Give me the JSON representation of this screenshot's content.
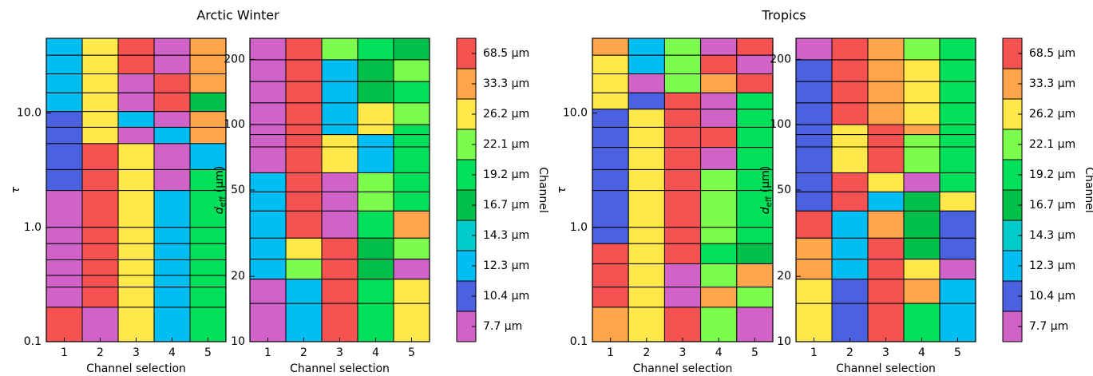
{
  "chart_data": [
    {
      "type": "heatmap",
      "title": "Arctic Winter",
      "xlabel": "Channel selection",
      "ylabel": "τ",
      "xlim": [
        0.5,
        5.5
      ],
      "xticks": [
        1,
        2,
        3,
        4,
        5
      ],
      "log_y": true,
      "ylim": [
        0.1,
        45
      ],
      "yticks": [
        0.1,
        {
          "value": 1,
          "label": "1.0"
        },
        {
          "value": 10,
          "label": "10.0"
        }
      ],
      "row_edges": [
        45,
        32,
        22,
        15,
        10.3,
        7.5,
        5.4,
        3.2,
        2.1,
        1.0,
        0.72,
        0.52,
        0.38,
        0.3,
        0.2,
        0.1
      ],
      "cells": [
        [
          7,
          2,
          0,
          9,
          1
        ],
        [
          7,
          2,
          0,
          9,
          1
        ],
        [
          7,
          2,
          9,
          0,
          1
        ],
        [
          7,
          2,
          9,
          0,
          5
        ],
        [
          8,
          2,
          7,
          9,
          1
        ],
        [
          8,
          2,
          9,
          7,
          1
        ],
        [
          8,
          0,
          2,
          9,
          7
        ],
        [
          8,
          0,
          2,
          9,
          4
        ],
        [
          9,
          0,
          2,
          7,
          4
        ],
        [
          9,
          0,
          2,
          7,
          4
        ],
        [
          9,
          0,
          2,
          7,
          4
        ],
        [
          9,
          0,
          2,
          7,
          4
        ],
        [
          9,
          0,
          2,
          7,
          4
        ],
        [
          9,
          0,
          2,
          7,
          4
        ],
        [
          0,
          9,
          2,
          7,
          4
        ]
      ]
    },
    {
      "type": "heatmap",
      "xlabel": "Channel selection",
      "ylabel": {
        "main": "d",
        "sub": "eff",
        "unit": "(μm)"
      },
      "xlim": [
        0.5,
        5.5
      ],
      "xticks": [
        1,
        2,
        3,
        4,
        5
      ],
      "log_y": true,
      "ylim": [
        10,
        250
      ],
      "yticks": [
        10,
        20,
        50,
        100,
        200
      ],
      "row_edges": [
        250,
        199,
        158,
        126,
        100,
        90,
        79,
        60,
        49,
        40,
        30,
        24,
        19.4,
        15,
        10
      ],
      "cells": [
        [
          9,
          0,
          3,
          4,
          5
        ],
        [
          9,
          0,
          7,
          5,
          3
        ],
        [
          9,
          0,
          7,
          5,
          4
        ],
        [
          9,
          0,
          7,
          2,
          3
        ],
        [
          9,
          0,
          7,
          2,
          4
        ],
        [
          9,
          0,
          2,
          7,
          4
        ],
        [
          9,
          0,
          2,
          7,
          4
        ],
        [
          7,
          0,
          9,
          3,
          4
        ],
        [
          7,
          0,
          9,
          3,
          4
        ],
        [
          7,
          0,
          9,
          4,
          1
        ],
        [
          7,
          2,
          0,
          5,
          3
        ],
        [
          7,
          3,
          0,
          5,
          9
        ],
        [
          9,
          7,
          0,
          4,
          2
        ],
        [
          9,
          7,
          0,
          4,
          2
        ]
      ]
    },
    {
      "type": "colorbar",
      "label": "Channel",
      "categories": [
        "68.5 μm",
        "33.3 μm",
        "26.2 μm",
        "22.1 μm",
        "19.2 μm",
        "16.7 μm",
        "14.3 μm",
        "12.3 μm",
        "10.4 μm",
        "7.7 μm"
      ],
      "colors": [
        "#f75252",
        "#ffa64d",
        "#ffe84a",
        "#7cfc4c",
        "#00e05a",
        "#00c04a",
        "#00cccc",
        "#00bdf2",
        "#4a62e0",
        "#d062c8"
      ]
    },
    {
      "type": "heatmap",
      "title": "Tropics",
      "xlabel": "Channel selection",
      "ylabel": "τ",
      "xlim": [
        0.5,
        5.5
      ],
      "xticks": [
        1,
        2,
        3,
        4,
        5
      ],
      "log_y": true,
      "ylim": [
        0.1,
        45
      ],
      "yticks": [
        0.1,
        {
          "value": 1,
          "label": "1.0"
        },
        {
          "value": 10,
          "label": "10.0"
        }
      ],
      "row_edges": [
        45,
        32,
        22,
        15,
        10.8,
        7.5,
        5.0,
        3.2,
        2.1,
        1.0,
        0.72,
        0.48,
        0.3,
        0.2,
        0.1
      ],
      "cells": [
        [
          1,
          7,
          3,
          9,
          0
        ],
        [
          2,
          7,
          3,
          0,
          9
        ],
        [
          2,
          9,
          3,
          1,
          0
        ],
        [
          2,
          8,
          0,
          9,
          4
        ],
        [
          8,
          2,
          0,
          9,
          4
        ],
        [
          8,
          2,
          0,
          0,
          4
        ],
        [
          8,
          2,
          0,
          9,
          4
        ],
        [
          8,
          2,
          0,
          3,
          4
        ],
        [
          8,
          2,
          0,
          3,
          4
        ],
        [
          8,
          2,
          0,
          3,
          4
        ],
        [
          0,
          2,
          0,
          4,
          5
        ],
        [
          0,
          2,
          9,
          3,
          1
        ],
        [
          0,
          2,
          9,
          1,
          3
        ],
        [
          1,
          2,
          0,
          3,
          9
        ]
      ]
    },
    {
      "type": "heatmap",
      "xlabel": "Channel selection",
      "ylabel": {
        "main": "d",
        "sub": "eff",
        "unit": "(μm)"
      },
      "xlim": [
        0.5,
        5.5
      ],
      "xticks": [
        1,
        2,
        3,
        4,
        5
      ],
      "log_y": true,
      "ylim": [
        10,
        250
      ],
      "yticks": [
        10,
        20,
        50,
        100,
        200
      ],
      "row_edges": [
        250,
        199,
        158,
        126,
        100,
        90,
        79,
        60,
        49,
        40,
        30,
        24,
        19.4,
        15,
        10
      ],
      "cells": [
        [
          9,
          0,
          1,
          3,
          4
        ],
        [
          8,
          0,
          1,
          2,
          4
        ],
        [
          8,
          0,
          1,
          2,
          4
        ],
        [
          8,
          0,
          1,
          2,
          4
        ],
        [
          8,
          2,
          0,
          1,
          4
        ],
        [
          8,
          2,
          0,
          3,
          4
        ],
        [
          8,
          2,
          0,
          3,
          4
        ],
        [
          8,
          0,
          2,
          9,
          4
        ],
        [
          8,
          0,
          7,
          5,
          2
        ],
        [
          0,
          7,
          1,
          5,
          8
        ],
        [
          1,
          7,
          0,
          5,
          8
        ],
        [
          1,
          7,
          0,
          2,
          9
        ],
        [
          2,
          8,
          0,
          1,
          7
        ],
        [
          2,
          8,
          0,
          4,
          7
        ]
      ]
    },
    {
      "type": "colorbar",
      "label": "Channel",
      "categories": [
        "68.5 μm",
        "33.3 μm",
        "26.2 μm",
        "22.1 μm",
        "19.2 μm",
        "16.7 μm",
        "14.3 μm",
        "12.3 μm",
        "10.4 μm",
        "7.7 μm"
      ],
      "colors": [
        "#f75252",
        "#ffa64d",
        "#ffe84a",
        "#7cfc4c",
        "#00e05a",
        "#00c04a",
        "#00cccc",
        "#00bdf2",
        "#4a62e0",
        "#d062c8"
      ]
    }
  ]
}
